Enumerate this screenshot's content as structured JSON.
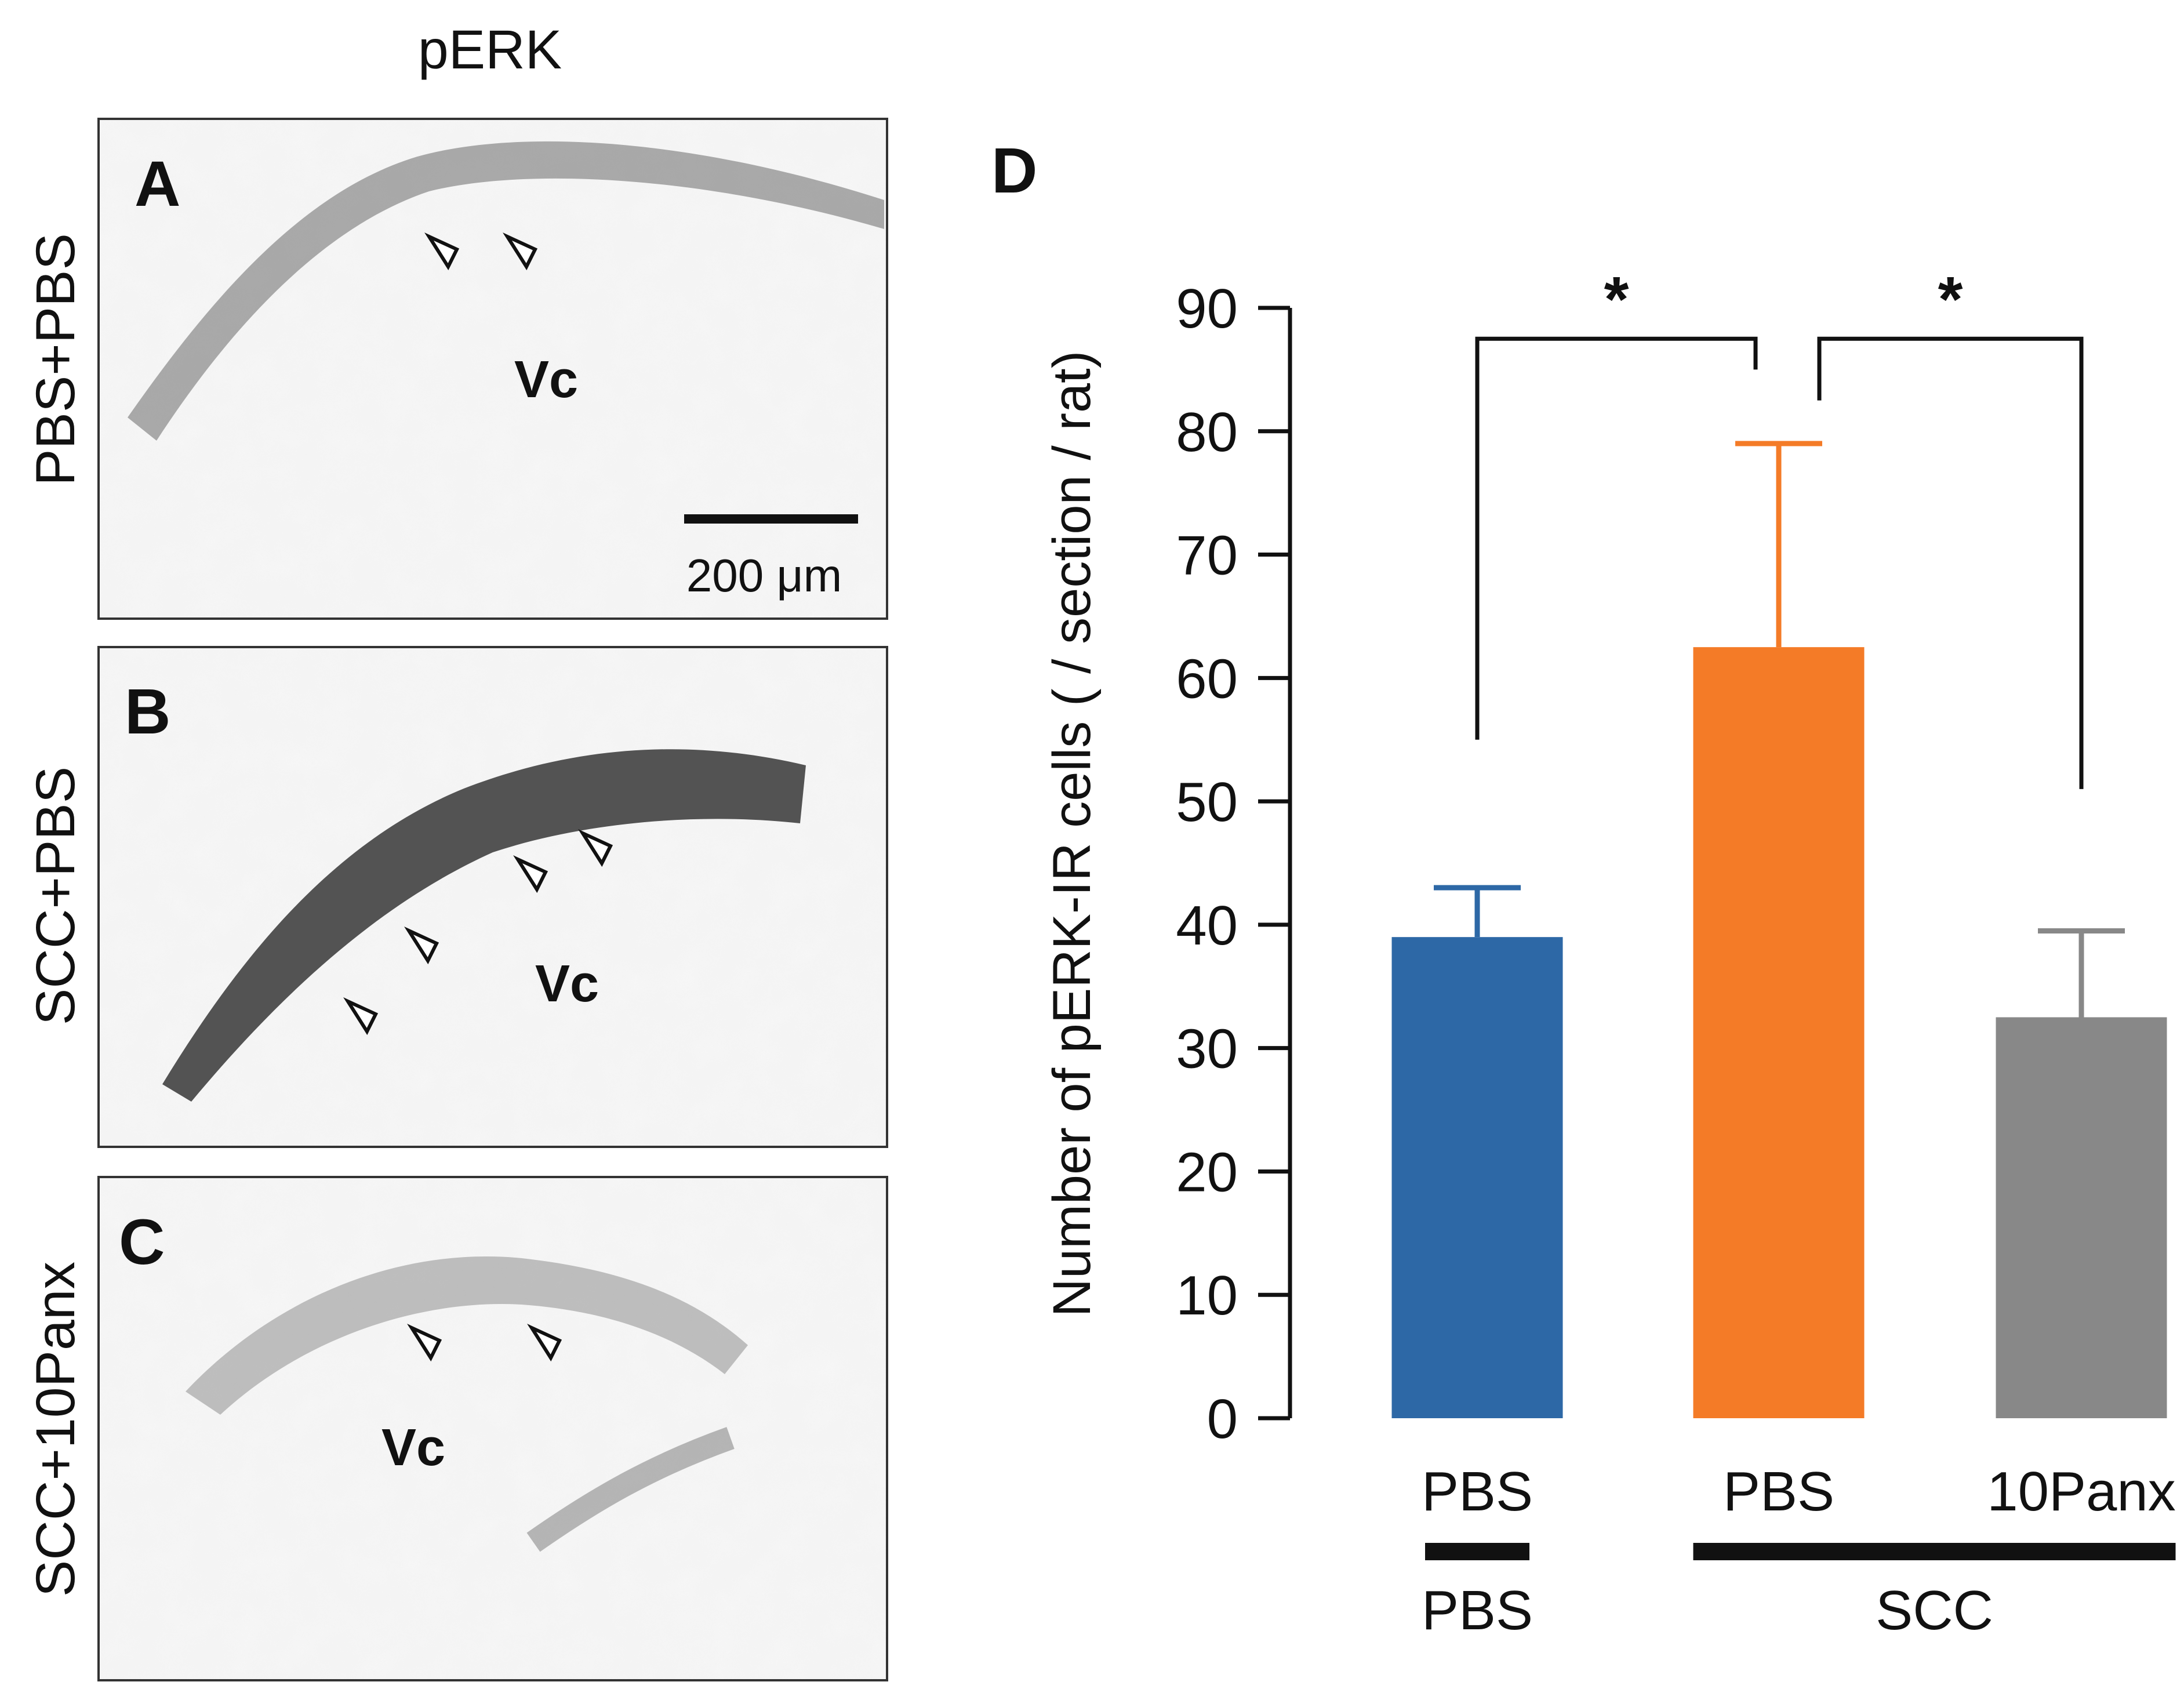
{
  "figure": {
    "column_title": "pERK",
    "panels": [
      {
        "letter": "A",
        "row_label": "PBS+PBS",
        "region_label": "Vc",
        "scale_bar_label": "200 μm"
      },
      {
        "letter": "B",
        "row_label": "SCC+PBS",
        "region_label": "Vc"
      },
      {
        "letter": "C",
        "row_label": "SCC+10Panx",
        "region_label": "Vc"
      }
    ],
    "chart_panel_letter": "D"
  },
  "chart_data": {
    "type": "bar",
    "ylabel": "Number of pERK-IR cells ( / section / rat)",
    "ylim": [
      0,
      90
    ],
    "yticks": [
      0,
      10,
      20,
      30,
      40,
      50,
      60,
      70,
      80,
      90
    ],
    "ytick_labels": [
      "0",
      "10",
      "20",
      "30",
      "40",
      "50",
      "60",
      "70",
      "80",
      "90"
    ],
    "categories": [
      "PBS",
      "PBS",
      "10Panx"
    ],
    "values": [
      39,
      62.5,
      32.5
    ],
    "errors": [
      4,
      16.5,
      7
    ],
    "colors": [
      "#2d68a6",
      "#f47b27",
      "#888888"
    ],
    "error_colors": [
      "#2d68a6",
      "#f47b27",
      "#888888"
    ],
    "groups": [
      {
        "label": "PBS",
        "members": [
          0
        ]
      },
      {
        "label": "SCC",
        "members": [
          1,
          2
        ]
      }
    ],
    "significance": [
      {
        "pair": [
          0,
          1
        ],
        "symbol": "*",
        "left_end": 55,
        "right_end": 85,
        "top": 87.5
      },
      {
        "pair": [
          1,
          2
        ],
        "symbol": "*",
        "left_end": 82.5,
        "right_end": 51,
        "top": 87.5
      }
    ]
  }
}
